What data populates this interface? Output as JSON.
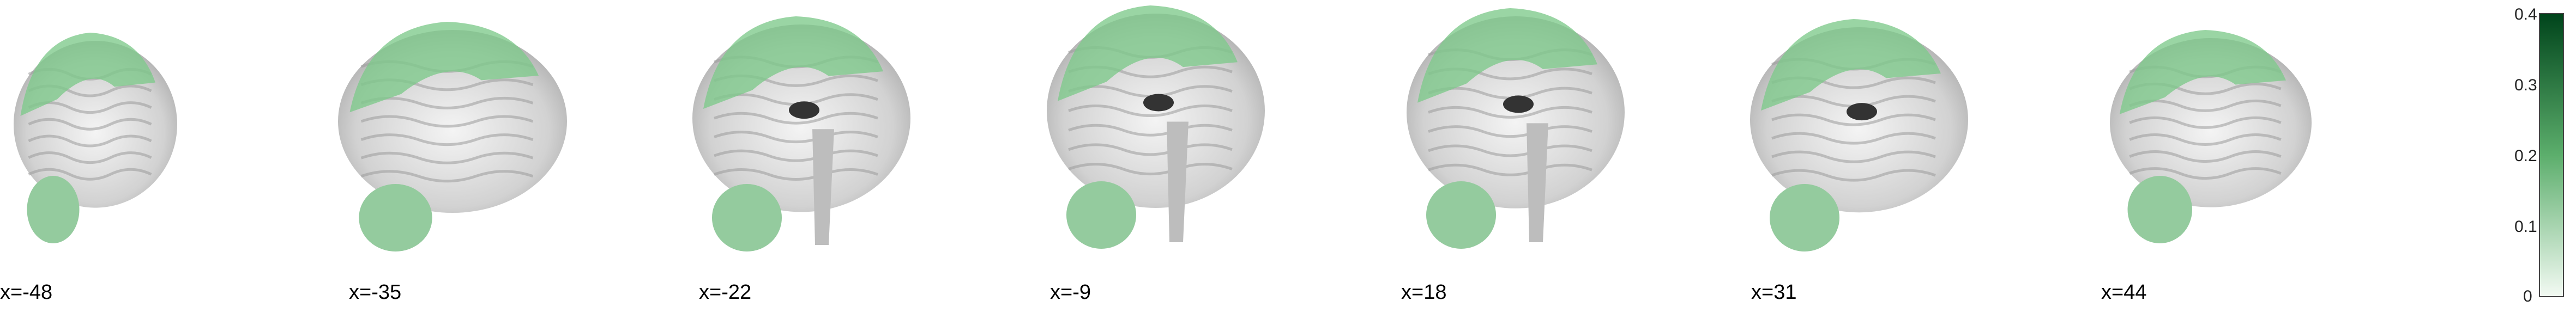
{
  "figure": {
    "cut_coordinates": [
      "x=-48",
      "x=-35",
      "x=-22",
      "x=-9",
      "x=18",
      "x=31",
      "x=44"
    ],
    "overlay_color": "#7dc98a",
    "colorbar": {
      "ticks": [
        "0.4",
        "0.3",
        "0.2",
        "0.1",
        "0"
      ],
      "range": [
        0,
        0.4
      ],
      "colors": [
        "#f3faf3",
        "#00441b"
      ]
    }
  }
}
